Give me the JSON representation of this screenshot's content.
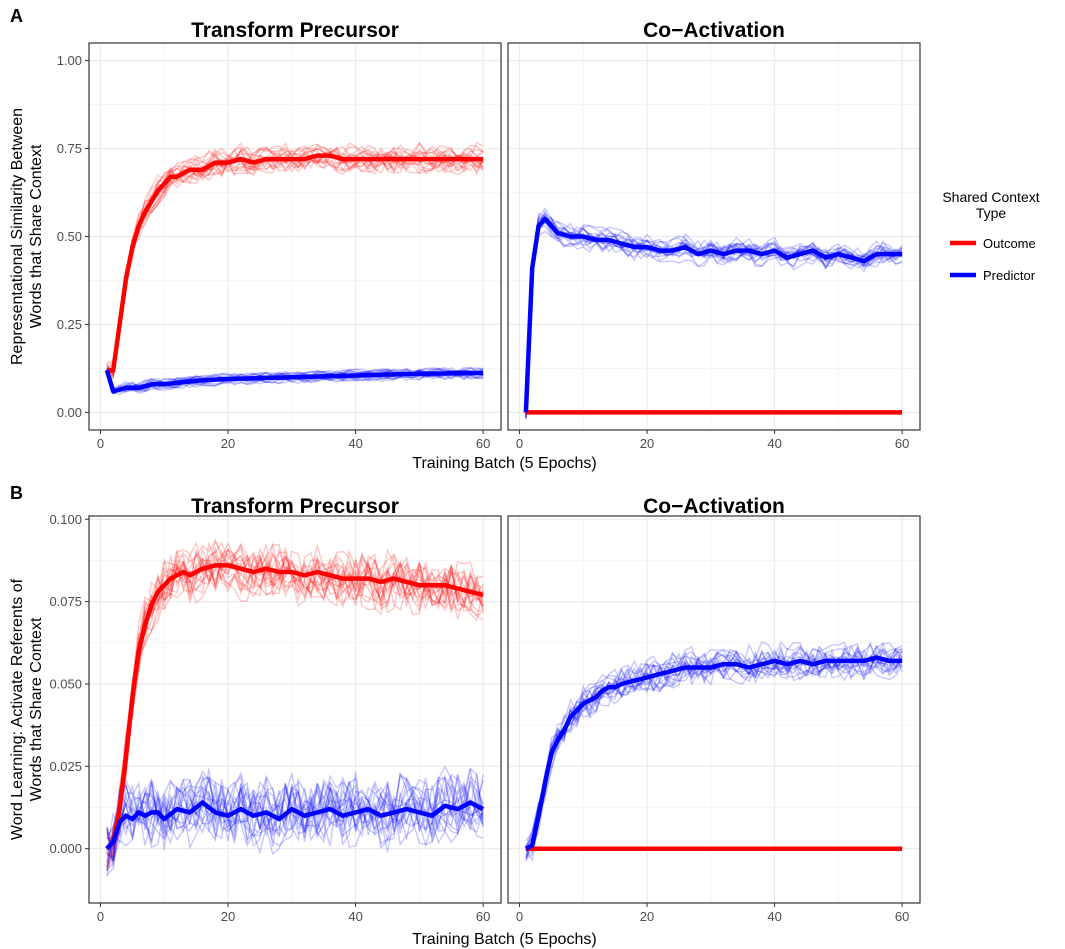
{
  "legend": {
    "title_lines": [
      "Shared Context",
      "Type"
    ],
    "items": [
      {
        "label": "Outcome",
        "color": "#ff0000"
      },
      {
        "label": "Predictor",
        "color": "#0000ff"
      }
    ]
  },
  "chart_data": [
    {
      "type": "line",
      "panel_label": "A",
      "facets": [
        "Transform Precursor",
        "Co−Activation"
      ],
      "xlabel": "Training Batch (5 Epochs)",
      "ylabel_lines": [
        "Representational Similarity Between",
        "Words that Share Context"
      ],
      "xlim": [
        -1.8,
        62.8
      ],
      "ylim": [
        -0.05,
        1.05
      ],
      "xticks": [
        0,
        20,
        40,
        60
      ],
      "xtick_labels": [
        "0",
        "20",
        "40",
        "60"
      ],
      "yticks": [
        0,
        0.25,
        0.5,
        0.75,
        1
      ],
      "ytick_labels": [
        "0.00",
        "0.25",
        "0.50",
        "0.75",
        "1.00"
      ],
      "grid": true,
      "series": [
        {
          "name": "Outcome",
          "facet": 0,
          "x": [
            1,
            2,
            3,
            4,
            5,
            6,
            7,
            8,
            9,
            10,
            11,
            12,
            14,
            16,
            18,
            20,
            22,
            24,
            26,
            28,
            30,
            32,
            34,
            36,
            38,
            40,
            42,
            44,
            46,
            48,
            50,
            52,
            54,
            56,
            58,
            60
          ],
          "y": [
            0.12,
            0.12,
            0.25,
            0.38,
            0.47,
            0.53,
            0.57,
            0.6,
            0.63,
            0.65,
            0.67,
            0.67,
            0.69,
            0.69,
            0.71,
            0.71,
            0.72,
            0.71,
            0.72,
            0.72,
            0.72,
            0.72,
            0.73,
            0.73,
            0.72,
            0.72,
            0.72,
            0.72,
            0.72,
            0.72,
            0.72,
            0.72,
            0.72,
            0.72,
            0.72,
            0.72
          ]
        },
        {
          "name": "Predictor",
          "facet": 0,
          "x": [
            1,
            2,
            4,
            6,
            8,
            10,
            15,
            20,
            30,
            40,
            50,
            60
          ],
          "y": [
            0.12,
            0.06,
            0.07,
            0.07,
            0.08,
            0.08,
            0.09,
            0.095,
            0.1,
            0.105,
            0.11,
            0.112
          ]
        },
        {
          "name": "Outcome",
          "facet": 1,
          "x": [
            1,
            2,
            60
          ],
          "y": [
            0,
            0,
            0
          ]
        },
        {
          "name": "Predictor",
          "facet": 1,
          "x": [
            1,
            2,
            3,
            4,
            5,
            6,
            8,
            10,
            12,
            14,
            16,
            18,
            20,
            22,
            24,
            26,
            28,
            30,
            32,
            34,
            36,
            38,
            40,
            42,
            44,
            46,
            48,
            50,
            52,
            54,
            56,
            58,
            60
          ],
          "y": [
            0,
            0.41,
            0.53,
            0.55,
            0.53,
            0.51,
            0.5,
            0.5,
            0.49,
            0.49,
            0.48,
            0.47,
            0.47,
            0.46,
            0.46,
            0.47,
            0.45,
            0.46,
            0.45,
            0.46,
            0.46,
            0.45,
            0.46,
            0.44,
            0.45,
            0.46,
            0.44,
            0.45,
            0.44,
            0.43,
            0.45,
            0.45,
            0.45
          ]
        }
      ]
    },
    {
      "type": "line",
      "panel_label": "B",
      "facets": [
        "Transform Precursor",
        "Co−Activation"
      ],
      "xlabel": "Training Batch (5 Epochs)",
      "ylabel_lines": [
        "Word Learning: Activate Referents of",
        "Words that Share Context"
      ],
      "xlim": [
        -1.8,
        62.8
      ],
      "ylim": [
        -0.0165,
        0.101
      ],
      "xticks": [
        0,
        20,
        40,
        60
      ],
      "xtick_labels": [
        "0",
        "20",
        "40",
        "60"
      ],
      "yticks": [
        0,
        0.025,
        0.05,
        0.075,
        0.1
      ],
      "ytick_labels": [
        "0.000",
        "0.025",
        "0.050",
        "0.075",
        "0.100"
      ],
      "grid": true,
      "series": [
        {
          "name": "Outcome",
          "facet": 0,
          "x": [
            1,
            2,
            3,
            4,
            5,
            6,
            7,
            8,
            9,
            10,
            11,
            12,
            13,
            14,
            16,
            18,
            20,
            22,
            24,
            26,
            28,
            30,
            32,
            34,
            36,
            38,
            40,
            42,
            44,
            46,
            48,
            50,
            52,
            54,
            56,
            58,
            60
          ],
          "y": [
            0,
            0.002,
            0.012,
            0.028,
            0.046,
            0.06,
            0.068,
            0.074,
            0.078,
            0.08,
            0.082,
            0.083,
            0.084,
            0.083,
            0.085,
            0.086,
            0.086,
            0.085,
            0.084,
            0.085,
            0.084,
            0.084,
            0.083,
            0.084,
            0.083,
            0.082,
            0.082,
            0.082,
            0.081,
            0.082,
            0.081,
            0.08,
            0.08,
            0.08,
            0.079,
            0.078,
            0.077
          ]
        },
        {
          "name": "Predictor",
          "facet": 0,
          "x": [
            1,
            2,
            3,
            4,
            5,
            6,
            7,
            8,
            9,
            10,
            12,
            14,
            16,
            18,
            20,
            22,
            24,
            26,
            28,
            30,
            32,
            34,
            36,
            38,
            40,
            42,
            44,
            46,
            48,
            50,
            52,
            54,
            56,
            58,
            60
          ],
          "y": [
            0,
            0.002,
            0.008,
            0.01,
            0.009,
            0.011,
            0.01,
            0.011,
            0.011,
            0.009,
            0.012,
            0.011,
            0.014,
            0.011,
            0.01,
            0.012,
            0.01,
            0.011,
            0.009,
            0.012,
            0.01,
            0.011,
            0.012,
            0.01,
            0.011,
            0.012,
            0.01,
            0.011,
            0.012,
            0.011,
            0.01,
            0.013,
            0.012,
            0.014,
            0.012
          ]
        },
        {
          "name": "Outcome",
          "facet": 1,
          "x": [
            1,
            2,
            60
          ],
          "y": [
            0,
            0,
            0
          ]
        },
        {
          "name": "Predictor",
          "facet": 1,
          "x": [
            1,
            2,
            3,
            4,
            5,
            6,
            7,
            8,
            9,
            10,
            11,
            12,
            13,
            14,
            15,
            16,
            18,
            20,
            22,
            24,
            26,
            28,
            30,
            32,
            34,
            36,
            38,
            40,
            42,
            44,
            46,
            48,
            50,
            52,
            54,
            56,
            58,
            60
          ],
          "y": [
            0,
            0.001,
            0.01,
            0.02,
            0.029,
            0.033,
            0.036,
            0.04,
            0.042,
            0.044,
            0.045,
            0.046,
            0.048,
            0.049,
            0.049,
            0.05,
            0.051,
            0.052,
            0.053,
            0.054,
            0.055,
            0.055,
            0.055,
            0.056,
            0.056,
            0.055,
            0.056,
            0.057,
            0.056,
            0.057,
            0.056,
            0.057,
            0.057,
            0.057,
            0.057,
            0.058,
            0.057,
            0.057
          ]
        }
      ]
    }
  ]
}
